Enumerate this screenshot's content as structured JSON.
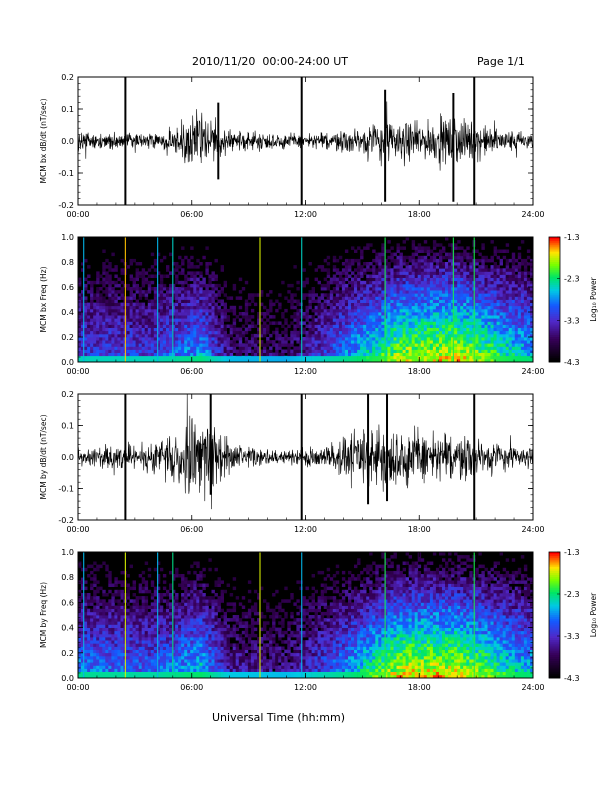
{
  "header": {
    "title": "2010/11/20  00:00-24:00 UT",
    "page": "Page 1/1"
  },
  "footer": {
    "xlabel": "Universal Time (hh:mm)"
  },
  "colorbar": {
    "label": "Log₁₀ Power",
    "ticks": [
      "-1.3",
      "-2.3",
      "-3.3",
      "-4.3"
    ],
    "range": [
      -4.3,
      -1.3
    ]
  },
  "colors": {
    "trace": "#000000",
    "background": "#ffffff",
    "spectro_low": "#000000",
    "spectro_high": "#ff0000"
  },
  "chart_data": [
    {
      "type": "line",
      "id": "bx-dbdt",
      "ylabel": "MCM bx dB/dt (nT/sec)",
      "xticks": [
        "00:00",
        "06:00",
        "12:00",
        "18:00",
        "24:00"
      ],
      "yticks": [
        "0.2",
        "0.1",
        "0.0",
        "-0.1",
        "-0.2"
      ],
      "xlim": [
        0,
        24
      ],
      "ylim": [
        -0.2,
        0.2
      ],
      "activity": [
        {
          "t": 0,
          "amp": 0.025
        },
        {
          "t": 3,
          "amp": 0.02
        },
        {
          "t": 5,
          "amp": 0.035
        },
        {
          "t": 6.5,
          "amp": 0.09
        },
        {
          "t": 8,
          "amp": 0.03
        },
        {
          "t": 12,
          "amp": 0.02
        },
        {
          "t": 14,
          "amp": 0.03
        },
        {
          "t": 16,
          "amp": 0.06
        },
        {
          "t": 18,
          "amp": 0.05
        },
        {
          "t": 20,
          "amp": 0.07
        },
        {
          "t": 22,
          "amp": 0.035
        },
        {
          "t": 24,
          "amp": 0.025
        }
      ],
      "spikes": [
        {
          "t": 2.5,
          "min": -0.2,
          "max": 0.2
        },
        {
          "t": 11.8,
          "min": -0.2,
          "max": 0.2
        },
        {
          "t": 20.9,
          "min": -0.2,
          "max": 0.2
        },
        {
          "t": 16.2,
          "min": -0.19,
          "max": 0.16
        },
        {
          "t": 19.8,
          "min": -0.19,
          "max": 0.15
        },
        {
          "t": 7.4,
          "min": -0.12,
          "max": 0.12
        }
      ]
    },
    {
      "type": "heatmap",
      "id": "bx-spectrogram",
      "ylabel": "MCM bx Freq (Hz)",
      "xticks": [
        "00:00",
        "06:00",
        "12:00",
        "18:00",
        "24:00"
      ],
      "yticks": [
        "1.0",
        "0.8",
        "0.6",
        "0.4",
        "0.2",
        "0.0"
      ],
      "xlim": [
        0,
        24
      ],
      "ylim": [
        0,
        1.0
      ],
      "zlim": [
        -4.3,
        -1.3
      ],
      "activity": [
        {
          "t": 0,
          "level": 0.45
        },
        {
          "t": 4,
          "level": 0.45
        },
        {
          "t": 6.5,
          "level": 0.6
        },
        {
          "t": 8,
          "level": 0.3
        },
        {
          "t": 11,
          "level": 0.25
        },
        {
          "t": 14,
          "level": 0.55
        },
        {
          "t": 17,
          "level": 0.85
        },
        {
          "t": 20,
          "level": 0.9
        },
        {
          "t": 22,
          "level": 0.75
        },
        {
          "t": 24,
          "level": 0.6
        }
      ],
      "lines": [
        {
          "t": 0.3,
          "level": 0.55
        },
        {
          "t": 2.5,
          "level": 0.9
        },
        {
          "t": 4.2,
          "level": 0.55
        },
        {
          "t": 5.0,
          "level": 0.6
        },
        {
          "t": 9.6,
          "level": 0.85
        },
        {
          "t": 11.8,
          "level": 0.6
        },
        {
          "t": 16.2,
          "level": 0.7
        },
        {
          "t": 19.8,
          "level": 0.7
        },
        {
          "t": 20.9,
          "level": 0.7
        }
      ]
    },
    {
      "type": "line",
      "id": "by-dbdt",
      "ylabel": "MCM by dB/dt (nT/sec)",
      "xticks": [
        "00:00",
        "06:00",
        "12:00",
        "18:00",
        "24:00"
      ],
      "yticks": [
        "0.2",
        "0.1",
        "0.0",
        "-0.1",
        "-0.2"
      ],
      "xlim": [
        0,
        24
      ],
      "ylim": [
        -0.2,
        0.2
      ],
      "activity": [
        {
          "t": 0,
          "amp": 0.025
        },
        {
          "t": 3,
          "amp": 0.04
        },
        {
          "t": 5,
          "amp": 0.06
        },
        {
          "t": 6.6,
          "amp": 0.14
        },
        {
          "t": 8,
          "amp": 0.04
        },
        {
          "t": 10,
          "amp": 0.02
        },
        {
          "t": 13,
          "amp": 0.03
        },
        {
          "t": 15,
          "amp": 0.08
        },
        {
          "t": 17,
          "amp": 0.09
        },
        {
          "t": 19,
          "amp": 0.07
        },
        {
          "t": 21,
          "amp": 0.06
        },
        {
          "t": 23,
          "amp": 0.03
        },
        {
          "t": 24,
          "amp": 0.025
        }
      ],
      "spikes": [
        {
          "t": 2.5,
          "min": -0.2,
          "max": 0.2
        },
        {
          "t": 11.8,
          "min": -0.2,
          "max": 0.2
        },
        {
          "t": 20.9,
          "min": -0.2,
          "max": 0.2
        },
        {
          "t": 15.3,
          "min": -0.15,
          "max": 0.2
        },
        {
          "t": 16.3,
          "min": -0.14,
          "max": 0.2
        },
        {
          "t": 7.0,
          "min": -0.12,
          "max": 0.2
        }
      ]
    },
    {
      "type": "heatmap",
      "id": "by-spectrogram",
      "ylabel": "MCM by Freq (Hz)",
      "xticks": [
        "00:00",
        "06:00",
        "12:00",
        "18:00",
        "24:00"
      ],
      "yticks": [
        "1.0",
        "0.8",
        "0.6",
        "0.4",
        "0.2",
        "0.0"
      ],
      "xlim": [
        0,
        24
      ],
      "ylim": [
        0,
        1.0
      ],
      "zlim": [
        -4.3,
        -1.3
      ],
      "activity": [
        {
          "t": 0,
          "level": 0.55
        },
        {
          "t": 4,
          "level": 0.5
        },
        {
          "t": 6.5,
          "level": 0.65
        },
        {
          "t": 8,
          "level": 0.35
        },
        {
          "t": 11,
          "level": 0.3
        },
        {
          "t": 14,
          "level": 0.55
        },
        {
          "t": 17,
          "level": 0.9
        },
        {
          "t": 20,
          "level": 0.9
        },
        {
          "t": 22,
          "level": 0.75
        },
        {
          "t": 24,
          "level": 0.6
        }
      ],
      "lines": [
        {
          "t": 0.3,
          "level": 0.55
        },
        {
          "t": 2.5,
          "level": 0.85
        },
        {
          "t": 4.2,
          "level": 0.55
        },
        {
          "t": 5.0,
          "level": 0.65
        },
        {
          "t": 9.6,
          "level": 0.85
        },
        {
          "t": 11.8,
          "level": 0.55
        },
        {
          "t": 16.2,
          "level": 0.7
        },
        {
          "t": 20.9,
          "level": 0.7
        }
      ]
    }
  ]
}
